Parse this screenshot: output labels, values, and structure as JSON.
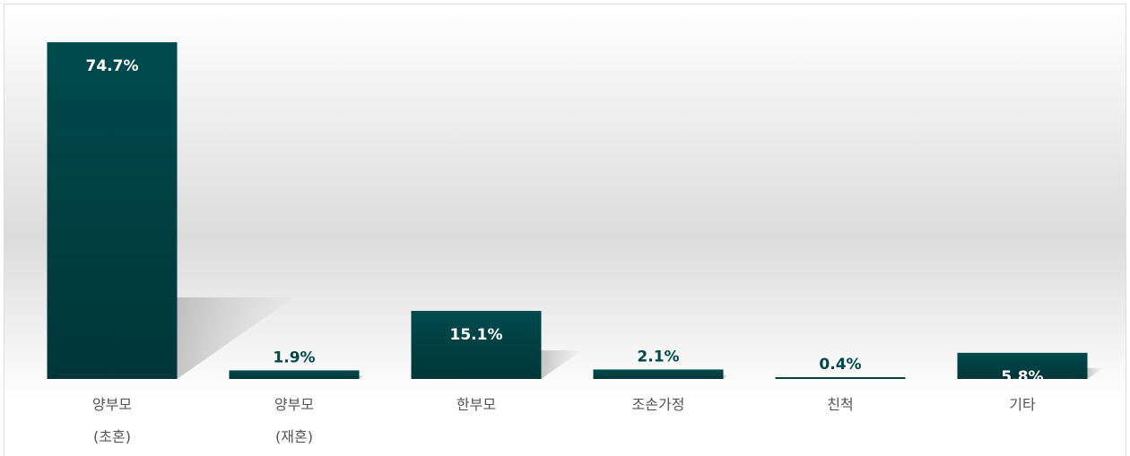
{
  "chart_data": {
    "type": "bar",
    "categories": [
      "양부모\n(초혼)",
      "양부모\n(재혼)",
      "한부모",
      "조손가정",
      "친척",
      "기타"
    ],
    "values": [
      74.7,
      1.9,
      15.1,
      2.1,
      0.4,
      5.8
    ],
    "value_labels": [
      "74.7%",
      "1.9%",
      "15.1%",
      "2.1%",
      "0.4%",
      "5.8%"
    ],
    "color": "#00474a",
    "ylim": [
      0,
      79.5
    ]
  }
}
